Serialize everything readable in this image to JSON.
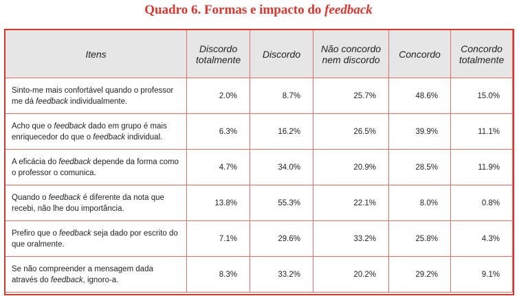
{
  "caption": {
    "prefix": "Quadro 6. Formas e impacto do ",
    "emphasis": "feedback"
  },
  "table": {
    "headers": [
      "Itens",
      "Discordo totalmente",
      "Discordo",
      "Não concordo nem discordo",
      "Concordo",
      "Concordo totalmente"
    ],
    "rows": [
      {
        "item": [
          "Sinto-me mais confortável quando o professor me dá ",
          "feedback",
          " individualmente."
        ],
        "values": [
          "2.0%",
          "8.7%",
          "25.7%",
          "48.6%",
          "15.0%"
        ]
      },
      {
        "item": [
          "Acho que o ",
          "feedback",
          " dado em grupo é mais enriquecedor do que o ",
          "feedback",
          " individual."
        ],
        "values": [
          "6.3%",
          "16.2%",
          "26.5%",
          "39.9%",
          "11.1%"
        ]
      },
      {
        "item": [
          "A eficácia do ",
          "feedback",
          " depende da forma como o professor o comunica."
        ],
        "values": [
          "4.7%",
          "34.0%",
          "20.9%",
          "28.5%",
          "11.9%"
        ]
      },
      {
        "item": [
          "Quando o ",
          "feedback",
          " é diferente da nota que recebi, não lhe dou importância."
        ],
        "values": [
          "13.8%",
          "55.3%",
          "22.1%",
          "8.0%",
          "0.8%"
        ]
      },
      {
        "item": [
          "Prefiro que o ",
          "feedback",
          " seja dado por escrito do que oralmente."
        ],
        "values": [
          "7.1%",
          "29.6%",
          "33.2%",
          "25.8%",
          "4.3%"
        ]
      },
      {
        "item": [
          "Se não compreender a mensagem dada através do ",
          "feedback",
          ", ignoro-a."
        ],
        "values": [
          "8.3%",
          "33.2%",
          "20.2%",
          "29.2%",
          "9.1%"
        ]
      }
    ]
  },
  "colors": {
    "accent": "#e0342a",
    "grid": "#e56d62",
    "header_bg": "#e6e6e6"
  }
}
